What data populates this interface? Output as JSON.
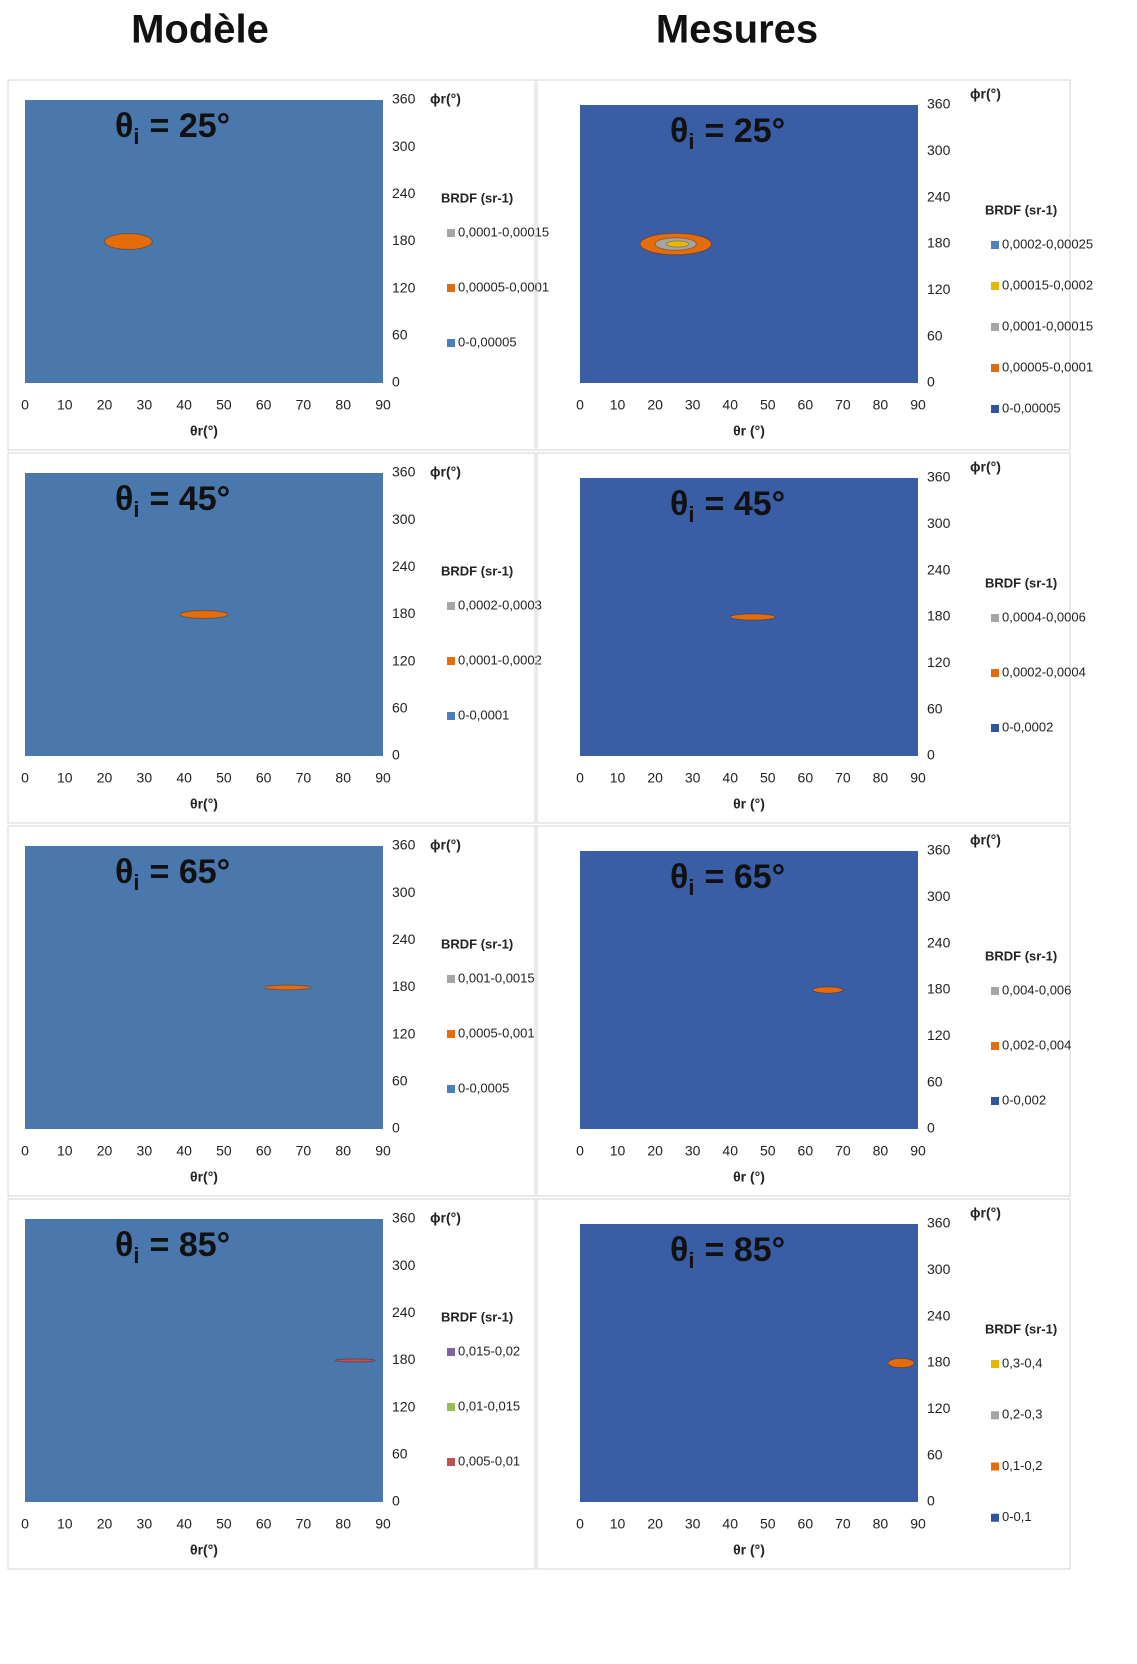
{
  "headers": [
    "Modèle",
    "Mesures"
  ],
  "chart_data": [
    {
      "type": "contour",
      "title": [
        "θ",
        "i",
        "= 25°"
      ],
      "x_label": "θr(°)",
      "y_label": "ϕr(°)",
      "legend_title": "BRDF (sr-1)",
      "plot_color": "#4a78ac",
      "xlim": [
        0,
        90
      ],
      "xticks": [
        0,
        10,
        20,
        30,
        40,
        50,
        60,
        70,
        80,
        90
      ],
      "ylim": [
        0,
        360
      ],
      "yticks": [
        0,
        60,
        120,
        180,
        240,
        300,
        360
      ],
      "series": [
        {
          "name": "0,0001-0,00015",
          "color": "#a5a5a5"
        },
        {
          "name": "0,00005-0,0001",
          "color": "#e46c0a",
          "xrange": [
            20,
            32
          ],
          "yrange": [
            170,
            190
          ]
        },
        {
          "name": "0-0,00005",
          "color": "#4a7ebb"
        }
      ]
    },
    {
      "type": "contour",
      "title": [
        "θ",
        "i",
        "= 25°"
      ],
      "x_label": "θr (°)",
      "y_label": "ϕr(°)",
      "legend_title": "BRDF (sr-1)",
      "plot_color": "#3a5ea6",
      "xlim": [
        0,
        90
      ],
      "xticks": [
        0,
        10,
        20,
        30,
        40,
        50,
        60,
        70,
        80,
        90
      ],
      "ylim": [
        0,
        360
      ],
      "yticks": [
        0,
        60,
        120,
        180,
        240,
        300,
        360
      ],
      "series": [
        {
          "name": "0,0002-0,00025",
          "color": "#4f81bd"
        },
        {
          "name": "0,00015-0,0002",
          "color": "#e6b800",
          "xrange": [
            23,
            29
          ],
          "yrange": [
            176,
            184
          ]
        },
        {
          "name": "0,0001-0,00015",
          "color": "#a5a5a5",
          "xrange": [
            20,
            31
          ],
          "yrange": [
            172,
            188
          ]
        },
        {
          "name": "0,00005-0,0001",
          "color": "#e46c0a",
          "xrange": [
            16,
            35
          ],
          "yrange": [
            166,
            194
          ]
        },
        {
          "name": "0-0,00005",
          "color": "#2f55a0"
        }
      ]
    },
    {
      "type": "contour",
      "title": [
        "θ",
        "i",
        "= 45°"
      ],
      "x_label": "θr(°)",
      "y_label": "ϕr(°)",
      "legend_title": "BRDF (sr-1)",
      "plot_color": "#4a78ac",
      "xlim": [
        0,
        90
      ],
      "xticks": [
        0,
        10,
        20,
        30,
        40,
        50,
        60,
        70,
        80,
        90
      ],
      "ylim": [
        0,
        360
      ],
      "yticks": [
        0,
        60,
        120,
        180,
        240,
        300,
        360
      ],
      "series": [
        {
          "name": "0,0002-0,0003",
          "color": "#a5a5a5"
        },
        {
          "name": "0,0001-0,0002",
          "color": "#e46c0a",
          "xrange": [
            39,
            51
          ],
          "yrange": [
            175,
            185
          ]
        },
        {
          "name": "0-0,0001",
          "color": "#4a7ebb"
        }
      ]
    },
    {
      "type": "contour",
      "title": [
        "θ",
        "i",
        "= 45°"
      ],
      "x_label": "θr (°)",
      "y_label": "ϕr(°)",
      "legend_title": "BRDF (sr-1)",
      "plot_color": "#3a5ea6",
      "xlim": [
        0,
        90
      ],
      "xticks": [
        0,
        10,
        20,
        30,
        40,
        50,
        60,
        70,
        80,
        90
      ],
      "ylim": [
        0,
        360
      ],
      "yticks": [
        0,
        60,
        120,
        180,
        240,
        300,
        360
      ],
      "series": [
        {
          "name": "0,0004-0,0006",
          "color": "#a5a5a5"
        },
        {
          "name": "0,0002-0,0004",
          "color": "#e46c0a",
          "xrange": [
            40,
            52
          ],
          "yrange": [
            176,
            184
          ]
        },
        {
          "name": "0-0,0002",
          "color": "#2f55a0"
        }
      ]
    },
    {
      "type": "contour",
      "title": [
        "θ",
        "i",
        "= 65°"
      ],
      "x_label": "θr(°)",
      "y_label": "ϕr(°)",
      "legend_title": "BRDF (sr-1)",
      "plot_color": "#4a78ac",
      "xlim": [
        0,
        90
      ],
      "xticks": [
        0,
        10,
        20,
        30,
        40,
        50,
        60,
        70,
        80,
        90
      ],
      "ylim": [
        0,
        360
      ],
      "yticks": [
        0,
        60,
        120,
        180,
        240,
        300,
        360
      ],
      "series": [
        {
          "name": "0,001-0,0015",
          "color": "#a5a5a5"
        },
        {
          "name": "0,0005-0,001",
          "color": "#e46c0a",
          "xrange": [
            60,
            72
          ],
          "yrange": [
            177,
            183
          ]
        },
        {
          "name": "0-0,0005",
          "color": "#4a7ebb"
        }
      ]
    },
    {
      "type": "contour",
      "title": [
        "θ",
        "i",
        "= 65°"
      ],
      "x_label": "θr (°)",
      "y_label": "ϕr(°)",
      "legend_title": "BRDF (sr-1)",
      "plot_color": "#3a5ea6",
      "xlim": [
        0,
        90
      ],
      "xticks": [
        0,
        10,
        20,
        30,
        40,
        50,
        60,
        70,
        80,
        90
      ],
      "ylim": [
        0,
        360
      ],
      "yticks": [
        0,
        60,
        120,
        180,
        240,
        300,
        360
      ],
      "series": [
        {
          "name": "0,004-0,006",
          "color": "#a5a5a5"
        },
        {
          "name": "0,002-0,004",
          "color": "#e46c0a",
          "xrange": [
            62,
            70
          ],
          "yrange": [
            176,
            184
          ]
        },
        {
          "name": "0-0,002",
          "color": "#2f55a0"
        }
      ]
    },
    {
      "type": "contour",
      "title": [
        "θ",
        "i",
        "= 85°"
      ],
      "x_label": "θr(°)",
      "y_label": "ϕr(°)",
      "legend_title": "BRDF (sr-1)",
      "plot_color": "#4a78ac",
      "xlim": [
        0,
        90
      ],
      "xticks": [
        0,
        10,
        20,
        30,
        40,
        50,
        60,
        70,
        80,
        90
      ],
      "ylim": [
        0,
        360
      ],
      "yticks": [
        0,
        60,
        120,
        180,
        240,
        300,
        360
      ],
      "series": [
        {
          "name": "0,015-0,02",
          "color": "#8064a2"
        },
        {
          "name": "0,01-0,015",
          "color": "#9bbb59"
        },
        {
          "name": "0,005-0,01",
          "color": "#c0504d",
          "xrange": [
            78,
            88
          ],
          "yrange": [
            178,
            182
          ]
        }
      ]
    },
    {
      "type": "contour",
      "title": [
        "θ",
        "i",
        "= 85°"
      ],
      "x_label": "θr (°)",
      "y_label": "ϕr(°)",
      "legend_title": "BRDF (sr-1)",
      "plot_color": "#3a5ea6",
      "xlim": [
        0,
        90
      ],
      "xticks": [
        0,
        10,
        20,
        30,
        40,
        50,
        60,
        70,
        80,
        90
      ],
      "ylim": [
        0,
        360
      ],
      "yticks": [
        0,
        60,
        120,
        180,
        240,
        300,
        360
      ],
      "series": [
        {
          "name": "0,3-0,4",
          "color": "#e6b800"
        },
        {
          "name": "0,2-0,3",
          "color": "#a5a5a5"
        },
        {
          "name": "0,1-0,2",
          "color": "#e46c0a",
          "xrange": [
            82,
            89
          ],
          "yrange": [
            174,
            186
          ]
        },
        {
          "name": "0-0,1",
          "color": "#2f55a0"
        }
      ]
    }
  ]
}
